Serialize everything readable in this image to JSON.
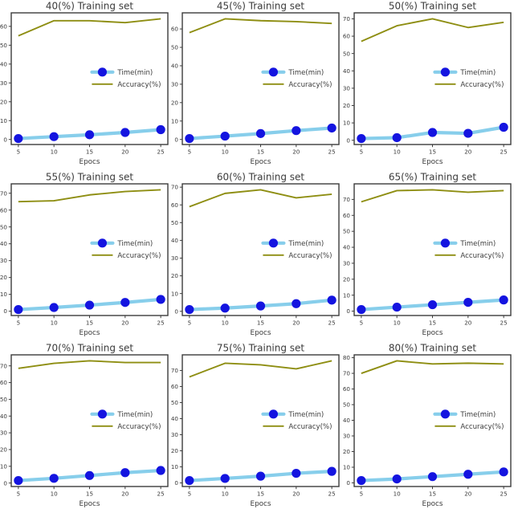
{
  "figure": {
    "background": "#ffffff",
    "rows": 3,
    "cols": 3
  },
  "styles": {
    "time_line_color": "#87ceeb",
    "time_marker_color": "#1414e0",
    "accuracy_line_color": "#8e8e12",
    "frame_color": "#3b3b3b",
    "text_color": "#3a3a3a",
    "tick_color": "#3b3b3b"
  },
  "chart_data": [
    {
      "type": "line",
      "title": "40(%) Training set",
      "xlabel": "Epocs",
      "x": [
        5,
        10,
        15,
        20,
        25
      ],
      "xticks": [
        5,
        10,
        15,
        20,
        25
      ],
      "yticks": [
        0,
        10,
        20,
        30,
        40,
        50,
        60
      ],
      "grid": false,
      "legend_position": "center-right",
      "legend": [
        "Time(min)",
        "Accuracy(%)"
      ],
      "series": [
        {
          "name": "Time(min)",
          "values": [
            0.5,
            1.5,
            2.5,
            3.7,
            5.2
          ]
        },
        {
          "name": "Accuracy(%)",
          "values": [
            55,
            63,
            63,
            62,
            64
          ]
        }
      ]
    },
    {
      "type": "line",
      "title": "45(%) Training set",
      "xlabel": "Epocs",
      "x": [
        5,
        10,
        15,
        20,
        25
      ],
      "xticks": [
        5,
        10,
        15,
        20,
        25
      ],
      "yticks": [
        0,
        10,
        20,
        30,
        40,
        50,
        60
      ],
      "grid": false,
      "legend_position": "center-right",
      "legend": [
        "Time(min)",
        "Accuracy(%)"
      ],
      "series": [
        {
          "name": "Time(min)",
          "values": [
            0.5,
            1.8,
            3.2,
            4.8,
            6.2
          ]
        },
        {
          "name": "Accuracy(%)",
          "values": [
            58,
            65.5,
            64.5,
            64,
            63
          ]
        }
      ]
    },
    {
      "type": "line",
      "title": "50(%) Training set",
      "xlabel": "Epocs",
      "x": [
        5,
        10,
        15,
        20,
        25
      ],
      "xticks": [
        5,
        10,
        15,
        20,
        25
      ],
      "yticks": [
        0,
        10,
        20,
        30,
        40,
        50,
        60,
        70
      ],
      "grid": false,
      "legend_position": "center-right",
      "legend": [
        "Time(min)",
        "Accuracy(%)"
      ],
      "series": [
        {
          "name": "Time(min)",
          "values": [
            1,
            1.5,
            4.5,
            4,
            7.5
          ]
        },
        {
          "name": "Accuracy(%)",
          "values": [
            57,
            66,
            70,
            65,
            68
          ]
        }
      ]
    },
    {
      "type": "line",
      "title": "55(%) Training set",
      "xlabel": "Epocs",
      "x": [
        5,
        10,
        15,
        20,
        25
      ],
      "xticks": [
        5,
        10,
        15,
        20,
        25
      ],
      "yticks": [
        0,
        10,
        20,
        30,
        40,
        50,
        60,
        70
      ],
      "grid": false,
      "legend_position": "center-right",
      "legend": [
        "Time(min)",
        "Accuracy(%)"
      ],
      "series": [
        {
          "name": "Time(min)",
          "values": [
            1,
            2.2,
            3.6,
            5.2,
            7
          ]
        },
        {
          "name": "Accuracy(%)",
          "values": [
            65,
            65.5,
            69,
            71,
            72
          ]
        }
      ]
    },
    {
      "type": "line",
      "title": "60(%) Training set",
      "xlabel": "Epocs",
      "x": [
        5,
        10,
        15,
        20,
        25
      ],
      "xticks": [
        5,
        10,
        15,
        20,
        25
      ],
      "yticks": [
        0,
        10,
        20,
        30,
        40,
        50,
        60,
        70
      ],
      "grid": false,
      "legend_position": "center-right",
      "legend": [
        "Time(min)",
        "Accuracy(%)"
      ],
      "series": [
        {
          "name": "Time(min)",
          "values": [
            1,
            1.8,
            3,
            4.3,
            6.3
          ]
        },
        {
          "name": "Accuracy(%)",
          "values": [
            59,
            66.5,
            68.5,
            64,
            66
          ]
        }
      ]
    },
    {
      "type": "line",
      "title": "65(%) Training set",
      "xlabel": "Epocs",
      "x": [
        5,
        10,
        15,
        20,
        25
      ],
      "xticks": [
        5,
        10,
        15,
        20,
        25
      ],
      "yticks": [
        0,
        10,
        20,
        30,
        40,
        50,
        60,
        70
      ],
      "grid": false,
      "legend_position": "center-right",
      "legend": [
        "Time(min)",
        "Accuracy(%)"
      ],
      "series": [
        {
          "name": "Time(min)",
          "values": [
            1,
            2.5,
            4,
            5.5,
            7
          ]
        },
        {
          "name": "Accuracy(%)",
          "values": [
            68.5,
            75.5,
            76,
            74.5,
            75.5
          ]
        }
      ]
    },
    {
      "type": "line",
      "title": "70(%) Training set",
      "xlabel": "Epocs",
      "x": [
        5,
        10,
        15,
        20,
        25
      ],
      "xticks": [
        5,
        10,
        15,
        20,
        25
      ],
      "yticks": [
        0,
        10,
        20,
        30,
        40,
        50,
        60,
        70
      ],
      "grid": false,
      "legend_position": "center-right",
      "legend": [
        "Time(min)",
        "Accuracy(%)"
      ],
      "series": [
        {
          "name": "Time(min)",
          "values": [
            1.5,
            2.8,
            4.5,
            6.2,
            7.5
          ]
        },
        {
          "name": "Accuracy(%)",
          "values": [
            68.5,
            71.5,
            73,
            72,
            72
          ]
        }
      ]
    },
    {
      "type": "line",
      "title": "75(%) Training set",
      "xlabel": "Epocs",
      "x": [
        5,
        10,
        15,
        20,
        25
      ],
      "xticks": [
        5,
        10,
        15,
        20,
        25
      ],
      "yticks": [
        0,
        10,
        20,
        30,
        40,
        50,
        60,
        70
      ],
      "grid": false,
      "legend_position": "center-right",
      "legend": [
        "Time(min)",
        "Accuracy(%)"
      ],
      "series": [
        {
          "name": "Time(min)",
          "values": [
            1.5,
            2.8,
            4.2,
            6,
            7.2
          ]
        },
        {
          "name": "Accuracy(%)",
          "values": [
            66,
            74.5,
            73.5,
            71,
            76
          ]
        }
      ]
    },
    {
      "type": "line",
      "title": "80(%) Training set",
      "xlabel": "Epocs",
      "x": [
        5,
        10,
        15,
        20,
        25
      ],
      "xticks": [
        5,
        10,
        15,
        20,
        25
      ],
      "yticks": [
        0,
        10,
        20,
        30,
        40,
        50,
        60,
        70,
        80
      ],
      "grid": false,
      "legend_position": "center-right",
      "legend": [
        "Time(min)",
        "Accuracy(%)"
      ],
      "series": [
        {
          "name": "Time(min)",
          "values": [
            1.5,
            2.5,
            4,
            5.5,
            7
          ]
        },
        {
          "name": "Accuracy(%)",
          "values": [
            70,
            78,
            76,
            76.5,
            76
          ]
        }
      ]
    }
  ]
}
